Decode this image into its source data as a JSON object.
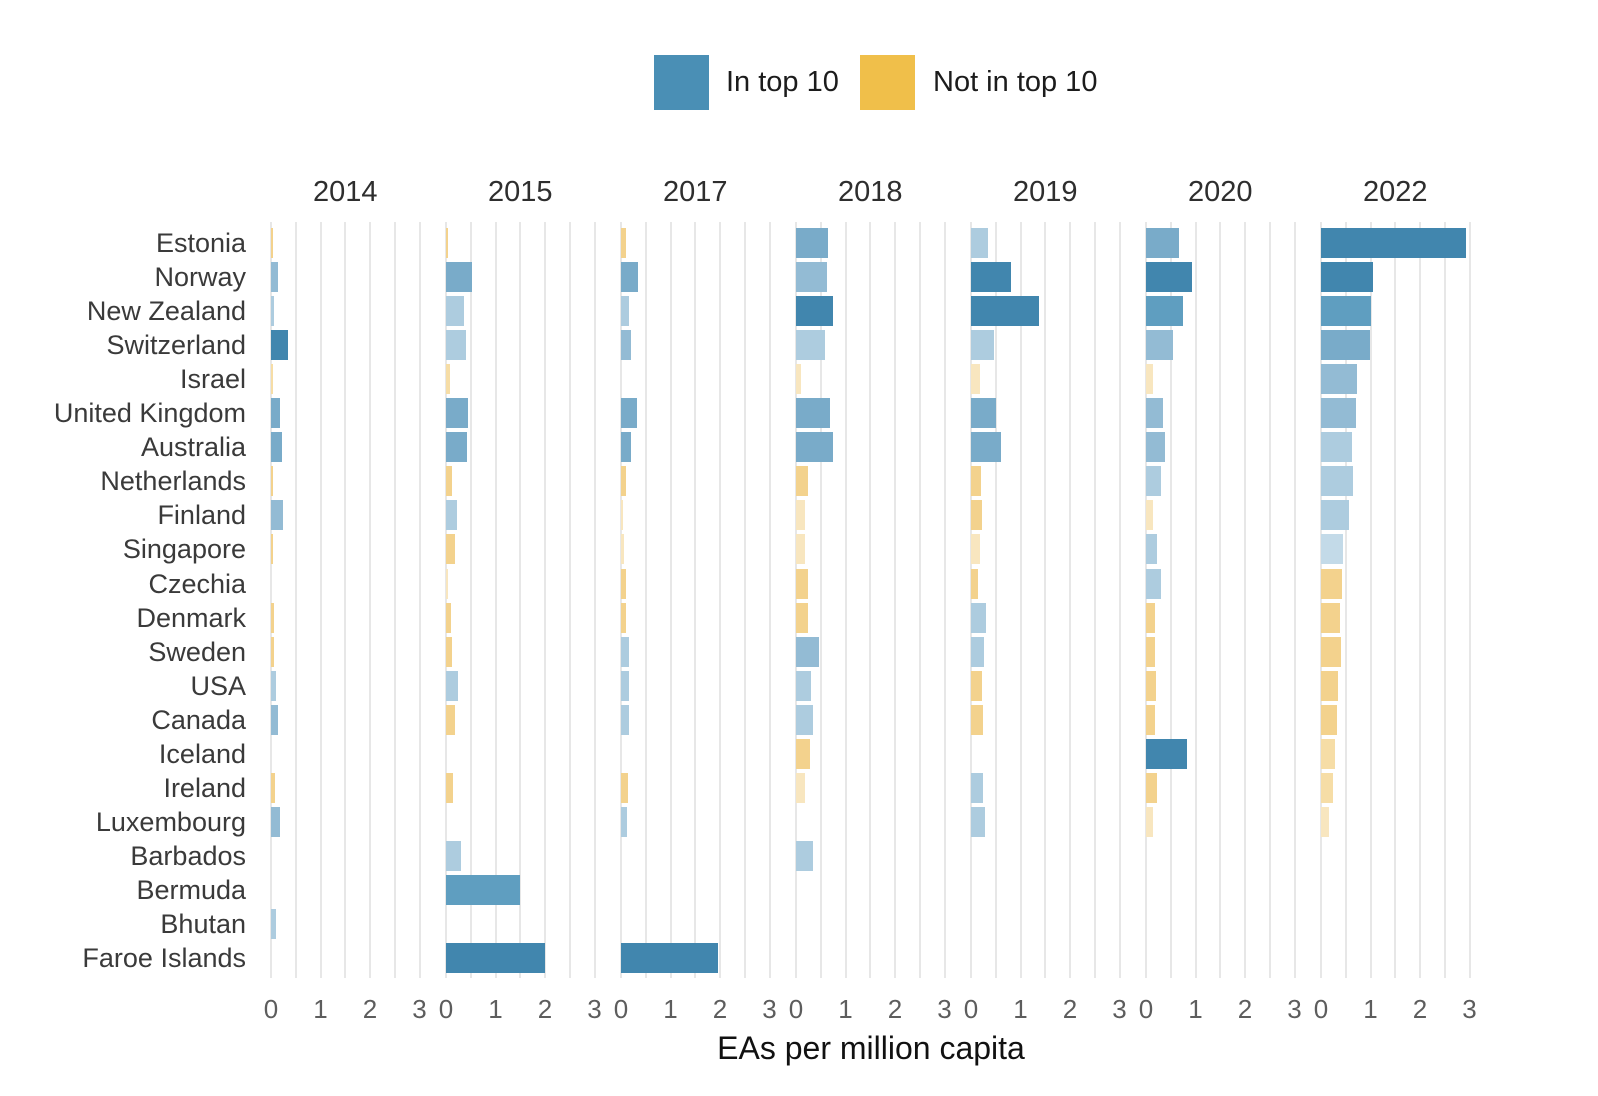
{
  "legend": {
    "items": [
      {
        "label": "In top 10",
        "color": "#4a8fb5"
      },
      {
        "label": "Not in top 10",
        "color": "#f0bf4a"
      }
    ]
  },
  "axis_title": "EAs per million capita",
  "chart_data": {
    "type": "bar",
    "orientation": "horizontal",
    "facets": [
      "2014",
      "2015",
      "2017",
      "2018",
      "2019",
      "2020",
      "2022"
    ],
    "xlabel": "EAs per million capita",
    "xlim": [
      0,
      3
    ],
    "x_ticks": [
      "0",
      "1",
      "2",
      "3"
    ],
    "grid": "minor vertical every 0.5",
    "legend_position": "top-center",
    "palette": {
      "b100": "#4186ae",
      "b85": "#5f9ec0",
      "b70": "#79abc9",
      "b55": "#93bbd4",
      "b40": "#adccdf",
      "b30": "#c3dae8",
      "y70": "#f3d28d",
      "y55": "#f6dda6",
      "y40": "#f8e6bf"
    },
    "color_legend": {
      "blue": "In top 10",
      "yellow": "Not in top 10"
    },
    "rows": [
      {
        "country": "Estonia",
        "cells": [
          [
            0.05,
            "y70"
          ],
          [
            0.05,
            "y70"
          ],
          [
            0.1,
            "y70"
          ],
          [
            0.65,
            "b70"
          ],
          [
            0.34,
            "b40"
          ],
          [
            0.66,
            "b70"
          ],
          [
            2.92,
            "b100"
          ]
        ]
      },
      {
        "country": "Norway",
        "cells": [
          [
            0.15,
            "b55"
          ],
          [
            0.52,
            "b70"
          ],
          [
            0.34,
            "b70"
          ],
          [
            0.63,
            "b55"
          ],
          [
            0.8,
            "b100"
          ],
          [
            0.92,
            "b100"
          ],
          [
            1.05,
            "b100"
          ]
        ]
      },
      {
        "country": "New Zealand",
        "cells": [
          [
            0.07,
            "b40"
          ],
          [
            0.37,
            "b40"
          ],
          [
            0.16,
            "b40"
          ],
          [
            0.75,
            "b100"
          ],
          [
            1.37,
            "b100"
          ],
          [
            0.75,
            "b85"
          ],
          [
            1.0,
            "b85"
          ]
        ]
      },
      {
        "country": "Switzerland",
        "cells": [
          [
            0.35,
            "b100"
          ],
          [
            0.4,
            "b40"
          ],
          [
            0.2,
            "b55"
          ],
          [
            0.58,
            "b40"
          ],
          [
            0.46,
            "b40"
          ],
          [
            0.55,
            "b55"
          ],
          [
            0.98,
            "b70"
          ]
        ]
      },
      {
        "country": "Israel",
        "cells": [
          [
            0.04,
            "y55"
          ],
          [
            0.08,
            "y55"
          ],
          null,
          [
            0.1,
            "y40"
          ],
          [
            0.18,
            "y40"
          ],
          [
            0.15,
            "y40"
          ],
          [
            0.72,
            "b55"
          ]
        ]
      },
      {
        "country": "United Kingdom",
        "cells": [
          [
            0.18,
            "b70"
          ],
          [
            0.44,
            "b70"
          ],
          [
            0.33,
            "b70"
          ],
          [
            0.68,
            "b70"
          ],
          [
            0.51,
            "b70"
          ],
          [
            0.34,
            "b55"
          ],
          [
            0.71,
            "b55"
          ]
        ]
      },
      {
        "country": "Australia",
        "cells": [
          [
            0.22,
            "b70"
          ],
          [
            0.43,
            "b70"
          ],
          [
            0.2,
            "b70"
          ],
          [
            0.75,
            "b70"
          ],
          [
            0.6,
            "b70"
          ],
          [
            0.38,
            "b55"
          ],
          [
            0.62,
            "b40"
          ]
        ]
      },
      {
        "country": "Netherlands",
        "cells": [
          [
            0.05,
            "y70"
          ],
          [
            0.12,
            "y70"
          ],
          [
            0.1,
            "y70"
          ],
          [
            0.24,
            "y70"
          ],
          [
            0.21,
            "y70"
          ],
          [
            0.3,
            "b40"
          ],
          [
            0.64,
            "b40"
          ]
        ]
      },
      {
        "country": "Finland",
        "cells": [
          [
            0.25,
            "b55"
          ],
          [
            0.22,
            "b40"
          ],
          [
            0.05,
            "y40"
          ],
          [
            0.18,
            "y40"
          ],
          [
            0.22,
            "y70"
          ],
          [
            0.15,
            "y40"
          ],
          [
            0.57,
            "b40"
          ]
        ]
      },
      {
        "country": "Singapore",
        "cells": [
          [
            0.04,
            "y70"
          ],
          [
            0.18,
            "y70"
          ],
          [
            0.06,
            "y40"
          ],
          [
            0.18,
            "y40"
          ],
          [
            0.18,
            "y40"
          ],
          [
            0.23,
            "b40"
          ],
          [
            0.44,
            "b30"
          ]
        ]
      },
      {
        "country": "Czechia",
        "cells": [
          null,
          [
            0.05,
            "y40"
          ],
          [
            0.1,
            "y70"
          ],
          [
            0.24,
            "y70"
          ],
          [
            0.15,
            "y70"
          ],
          [
            0.3,
            "b40"
          ],
          [
            0.42,
            "y70"
          ]
        ]
      },
      {
        "country": "Denmark",
        "cells": [
          [
            0.07,
            "y70"
          ],
          [
            0.1,
            "y70"
          ],
          [
            0.1,
            "y70"
          ],
          [
            0.24,
            "y70"
          ],
          [
            0.31,
            "b40"
          ],
          [
            0.18,
            "y70"
          ],
          [
            0.38,
            "y70"
          ]
        ]
      },
      {
        "country": "Sweden",
        "cells": [
          [
            0.07,
            "y70"
          ],
          [
            0.13,
            "y70"
          ],
          [
            0.16,
            "b40"
          ],
          [
            0.46,
            "b55"
          ],
          [
            0.26,
            "b40"
          ],
          [
            0.19,
            "y70"
          ],
          [
            0.4,
            "y70"
          ]
        ]
      },
      {
        "country": "USA",
        "cells": [
          [
            0.11,
            "b40"
          ],
          [
            0.24,
            "b40"
          ],
          [
            0.16,
            "b40"
          ],
          [
            0.3,
            "b40"
          ],
          [
            0.22,
            "y70"
          ],
          [
            0.2,
            "y70"
          ],
          [
            0.35,
            "y70"
          ]
        ]
      },
      {
        "country": "Canada",
        "cells": [
          [
            0.15,
            "b55"
          ],
          [
            0.18,
            "y70"
          ],
          [
            0.16,
            "b40"
          ],
          [
            0.34,
            "b40"
          ],
          [
            0.24,
            "y70"
          ],
          [
            0.18,
            "y70"
          ],
          [
            0.33,
            "y70"
          ]
        ]
      },
      {
        "country": "Iceland",
        "cells": [
          null,
          null,
          null,
          [
            0.28,
            "y70"
          ],
          null,
          [
            0.83,
            "b100"
          ],
          [
            0.28,
            "y55"
          ]
        ]
      },
      {
        "country": "Ireland",
        "cells": [
          [
            0.08,
            "y70"
          ],
          [
            0.15,
            "y70"
          ],
          [
            0.14,
            "y70"
          ],
          [
            0.19,
            "y40"
          ],
          [
            0.24,
            "b40"
          ],
          [
            0.23,
            "y70"
          ],
          [
            0.25,
            "y55"
          ]
        ]
      },
      {
        "country": "Luxembourg",
        "cells": [
          [
            0.18,
            "b55"
          ],
          null,
          [
            0.13,
            "b40"
          ],
          null,
          [
            0.29,
            "b40"
          ],
          [
            0.15,
            "y40"
          ],
          [
            0.17,
            "y40"
          ]
        ]
      },
      {
        "country": "Barbados",
        "cells": [
          null,
          [
            0.3,
            "b40"
          ],
          null,
          [
            0.34,
            "b40"
          ],
          null,
          null,
          null
        ]
      },
      {
        "country": "Bermuda",
        "cells": [
          null,
          [
            1.49,
            "b85"
          ],
          null,
          null,
          null,
          null,
          null
        ]
      },
      {
        "country": "Bhutan",
        "cells": [
          [
            0.11,
            "b40"
          ],
          null,
          null,
          null,
          null,
          null,
          null
        ]
      },
      {
        "country": "Faroe Islands",
        "cells": [
          null,
          [
            2.0,
            "b100"
          ],
          [
            1.96,
            "b100"
          ],
          null,
          null,
          null,
          null
        ]
      }
    ]
  }
}
